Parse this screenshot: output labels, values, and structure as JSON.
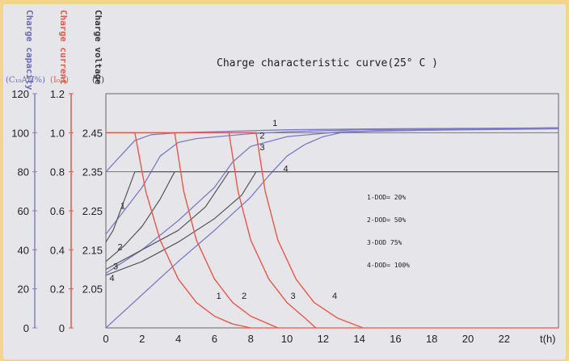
{
  "chart_data": {
    "type": "line",
    "title": "Charge characteristic curve(25° C )",
    "xlabel": "t(h)",
    "x_ticks": [
      0,
      2,
      4,
      6,
      8,
      10,
      12,
      14,
      16,
      18,
      20,
      22
    ],
    "xlim": [
      0,
      25
    ],
    "axes": {
      "voltage": {
        "title": "Charge voltage",
        "unit": "(V)",
        "color": "#333333",
        "ticks": [
          "2.05",
          "2.15",
          "2.25",
          "2.35",
          "2.45"
        ],
        "range": [
          1.95,
          2.55
        ]
      },
      "current": {
        "title": "Charge current",
        "unit": "(I₀A)",
        "color": "#e8574a",
        "ticks": [
          "0",
          "0.2",
          "0.4",
          "0.6",
          "0.8",
          "1.0",
          "1.2"
        ],
        "range": [
          0,
          1.2
        ]
      },
      "capacity": {
        "title": "Charge capacity",
        "unit": "(C₁₀AH%)",
        "color": "#6a6ab8",
        "ticks": [
          "0",
          "20",
          "40",
          "60",
          "80",
          "100",
          "120"
        ],
        "range": [
          0,
          120
        ]
      }
    },
    "reference_lines": {
      "voltage_levels": [
        2.45,
        2.35
      ]
    },
    "legend": [
      {
        "label": "1",
        "text": "1-DOD= 20%"
      },
      {
        "label": "2",
        "text": "2-DOD= 50%"
      },
      {
        "label": "3",
        "text": "3-DOD 75%"
      },
      {
        "label": "4",
        "text": "4-DOD= 100%"
      }
    ],
    "legend_placement": "center-right",
    "series": {
      "capacity": [
        {
          "label": "1",
          "color": "#7a7ac8",
          "points": [
            [
              0,
              80
            ],
            [
              0.8,
              88
            ],
            [
              1.6,
              96
            ],
            [
              2.5,
              99
            ],
            [
              4,
              100
            ],
            [
              8,
              101
            ],
            [
              10,
              101.5
            ],
            [
              15,
              102
            ],
            [
              25,
              102.5
            ]
          ]
        },
        {
          "label": "2",
          "color": "#7a7ac8",
          "points": [
            [
              0,
              48
            ],
            [
              1,
              60
            ],
            [
              2,
              72
            ],
            [
              3,
              88
            ],
            [
              4,
              95
            ],
            [
              5,
              97
            ],
            [
              8,
              99.5
            ],
            [
              10,
              100.5
            ],
            [
              14,
              101.5
            ],
            [
              25,
              102.5
            ]
          ]
        },
        {
          "label": "3",
          "color": "#7a7ac8",
          "points": [
            [
              0,
              28
            ],
            [
              2,
              40
            ],
            [
              4,
              55
            ],
            [
              6,
              72
            ],
            [
              7,
              85
            ],
            [
              8,
              93
            ],
            [
              10,
              98
            ],
            [
              13,
              100.5
            ],
            [
              25,
              102.5
            ]
          ]
        },
        {
          "label": "4",
          "color": "#7a7ac8",
          "points": [
            [
              0,
              0
            ],
            [
              2,
              17
            ],
            [
              4,
              34
            ],
            [
              6,
              50
            ],
            [
              8,
              67
            ],
            [
              9,
              78
            ],
            [
              10,
              88
            ],
            [
              11,
              94
            ],
            [
              12,
              98
            ],
            [
              13,
              100
            ],
            [
              15,
              101
            ],
            [
              25,
              102
            ]
          ]
        }
      ],
      "voltage": [
        {
          "label": "1",
          "color": "#555555",
          "points": [
            [
              0,
              2.17
            ],
            [
              0.4,
              2.2
            ],
            [
              0.8,
              2.25
            ],
            [
              1.2,
              2.3
            ],
            [
              1.6,
              2.35
            ],
            [
              25,
              2.35
            ]
          ]
        },
        {
          "label": "2",
          "color": "#555555",
          "points": [
            [
              0,
              2.12
            ],
            [
              1,
              2.16
            ],
            [
              2,
              2.21
            ],
            [
              3,
              2.28
            ],
            [
              3.8,
              2.35
            ]
          ]
        },
        {
          "label": "3",
          "color": "#555555",
          "points": [
            [
              0,
              2.1
            ],
            [
              2,
              2.15
            ],
            [
              4,
              2.2
            ],
            [
              5.5,
              2.26
            ],
            [
              6.8,
              2.35
            ]
          ]
        },
        {
          "label": "4",
          "color": "#555555",
          "points": [
            [
              0,
              2.085
            ],
            [
              2,
              2.12
            ],
            [
              4,
              2.17
            ],
            [
              6,
              2.23
            ],
            [
              7.5,
              2.29
            ],
            [
              8.3,
              2.35
            ]
          ]
        }
      ],
      "current": [
        {
          "label": "1",
          "color": "#e8574a",
          "points": [
            [
              0,
              1.0
            ],
            [
              1.6,
              1.0
            ],
            [
              2.2,
              0.7
            ],
            [
              3,
              0.45
            ],
            [
              4,
              0.25
            ],
            [
              5,
              0.13
            ],
            [
              6,
              0.06
            ],
            [
              7,
              0.02
            ],
            [
              8,
              0
            ]
          ]
        },
        {
          "label": "2",
          "color": "#e8574a",
          "points": [
            [
              3.8,
              1.0
            ],
            [
              4.3,
              0.7
            ],
            [
              5,
              0.45
            ],
            [
              6,
              0.25
            ],
            [
              7,
              0.13
            ],
            [
              8,
              0.06
            ],
            [
              9,
              0.02
            ],
            [
              9.5,
              0
            ]
          ]
        },
        {
          "label": "3",
          "color": "#e8574a",
          "points": [
            [
              6.8,
              1.0
            ],
            [
              7.3,
              0.7
            ],
            [
              8,
              0.45
            ],
            [
              9,
              0.25
            ],
            [
              10,
              0.13
            ],
            [
              11,
              0.05
            ],
            [
              11.6,
              0
            ]
          ]
        },
        {
          "label": "4",
          "color": "#e8574a",
          "points": [
            [
              8.3,
              1.0
            ],
            [
              8.8,
              0.7
            ],
            [
              9.5,
              0.45
            ],
            [
              10.5,
              0.25
            ],
            [
              11.5,
              0.13
            ],
            [
              12.8,
              0.05
            ],
            [
              14.2,
              0
            ]
          ]
        }
      ]
    },
    "annotations": {
      "capacity_labels": [
        {
          "text": "1",
          "x": 9.2,
          "y": 103.5
        },
        {
          "text": "2",
          "x": 8.5,
          "y": 97
        },
        {
          "text": "3",
          "x": 8.5,
          "y": 91
        },
        {
          "text": "4",
          "x": 9.8,
          "y": 80
        }
      ],
      "voltage_labels": [
        {
          "text": "1",
          "x": 0.8,
          "y": 2.255
        },
        {
          "text": "2",
          "x": 0.65,
          "y": 2.15
        },
        {
          "text": "3",
          "x": 0.4,
          "y": 2.1
        },
        {
          "text": "4",
          "x": 0.2,
          "y": 2.07
        }
      ],
      "current_labels": [
        {
          "text": "1",
          "x": 6.1,
          "y": 0.15
        },
        {
          "text": "2",
          "x": 7.5,
          "y": 0.15
        },
        {
          "text": "3",
          "x": 10.2,
          "y": 0.15
        },
        {
          "text": "4",
          "x": 12.5,
          "y": 0.15
        }
      ]
    }
  }
}
